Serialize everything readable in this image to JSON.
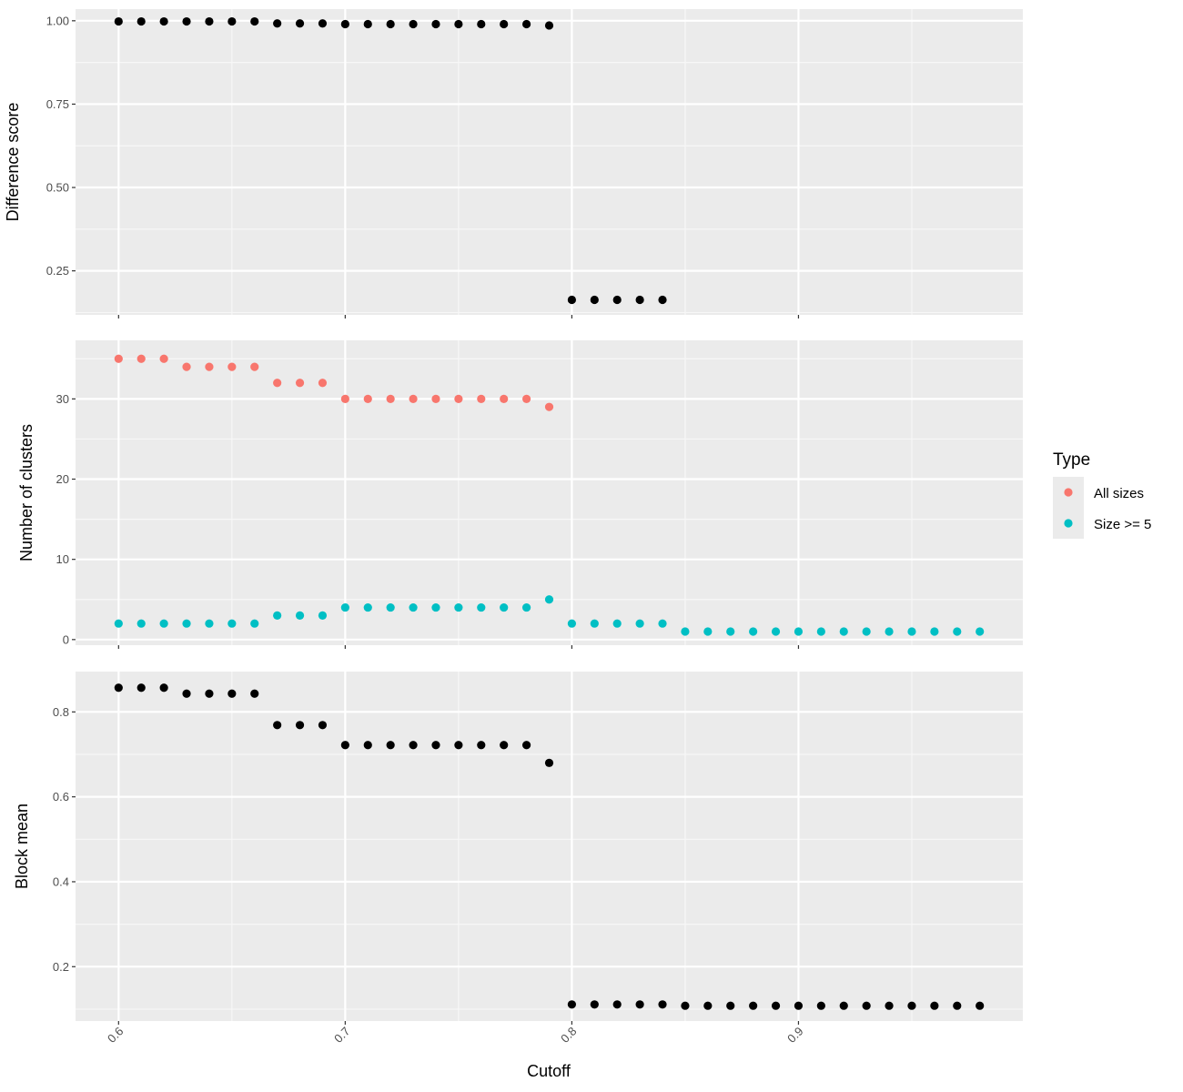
{
  "chart_data": {
    "type": "scatter",
    "xlabel": "Cutoff",
    "x_ticks": [
      "0.6",
      "0.7",
      "0.8",
      "0.9"
    ],
    "xlim": [
      0.581,
      0.999
    ],
    "x": [
      0.6,
      0.61,
      0.62,
      0.63,
      0.64,
      0.65,
      0.66,
      0.67,
      0.68,
      0.69,
      0.7,
      0.71,
      0.72,
      0.73,
      0.74,
      0.75,
      0.76,
      0.77,
      0.78,
      0.79,
      0.8,
      0.81,
      0.82,
      0.83,
      0.84,
      0.85,
      0.86,
      0.87,
      0.88,
      0.89,
      0.9,
      0.91,
      0.92,
      0.93,
      0.94,
      0.95,
      0.96,
      0.97,
      0.98
    ],
    "legend": {
      "title": "Type",
      "position": "right",
      "entries": [
        {
          "label": "All sizes",
          "color": "#F8766D"
        },
        {
          "label": "Size >= 5",
          "color": "#00BFC4"
        }
      ]
    },
    "panels": [
      {
        "ylabel": "Difference score",
        "ylim": [
          0.118,
          1.035
        ],
        "y_ticks": [
          "0.25",
          "0.50",
          "0.75",
          "1.00"
        ],
        "y_tick_values": [
          0.25,
          0.5,
          0.75,
          1.0
        ],
        "series": [
          {
            "color": "#000000",
            "x_start": 0.6,
            "values": [
              0.998,
              0.998,
              0.998,
              0.998,
              0.998,
              0.998,
              0.998,
              0.992,
              0.992,
              0.992,
              0.99,
              0.99,
              0.99,
              0.99,
              0.99,
              0.99,
              0.99,
              0.99,
              0.99,
              0.986,
              0.163,
              0.163,
              0.163,
              0.163,
              0.163
            ]
          }
        ]
      },
      {
        "ylabel": "Number of clusters",
        "ylim": [
          -0.7,
          37.3
        ],
        "y_ticks": [
          "0",
          "10",
          "20",
          "30"
        ],
        "y_tick_values": [
          0,
          10,
          20,
          30
        ],
        "series": [
          {
            "name": "All sizes",
            "color": "#F8766D",
            "x_start": 0.6,
            "values": [
              35,
              35,
              35,
              34,
              34,
              34,
              34,
              32,
              32,
              32,
              30,
              30,
              30,
              30,
              30,
              30,
              30,
              30,
              30,
              29
            ]
          },
          {
            "name": "Size >= 5",
            "color": "#00BFC4",
            "x_start": 0.6,
            "values": [
              2,
              2,
              2,
              2,
              2,
              2,
              2,
              3,
              3,
              3,
              4,
              4,
              4,
              4,
              4,
              4,
              4,
              4,
              4,
              5,
              2,
              2,
              2,
              2,
              2,
              1,
              1,
              1,
              1,
              1,
              1,
              1,
              1,
              1,
              1,
              1,
              1,
              1,
              1
            ]
          }
        ]
      },
      {
        "ylabel": "Block mean",
        "ylim": [
          0.072,
          0.895
        ],
        "y_ticks": [
          "0.2",
          "0.4",
          "0.6",
          "0.8"
        ],
        "y_tick_values": [
          0.2,
          0.4,
          0.6,
          0.8
        ],
        "series": [
          {
            "color": "#000000",
            "x_start": 0.6,
            "values": [
              0.857,
              0.857,
              0.857,
              0.843,
              0.843,
              0.843,
              0.843,
              0.769,
              0.769,
              0.769,
              0.722,
              0.722,
              0.722,
              0.722,
              0.722,
              0.722,
              0.722,
              0.722,
              0.722,
              0.68,
              0.111,
              0.111,
              0.111,
              0.111,
              0.111,
              0.108,
              0.108,
              0.108,
              0.108,
              0.108,
              0.108,
              0.108,
              0.108,
              0.108,
              0.108,
              0.108,
              0.108,
              0.108,
              0.108
            ]
          }
        ]
      }
    ]
  }
}
